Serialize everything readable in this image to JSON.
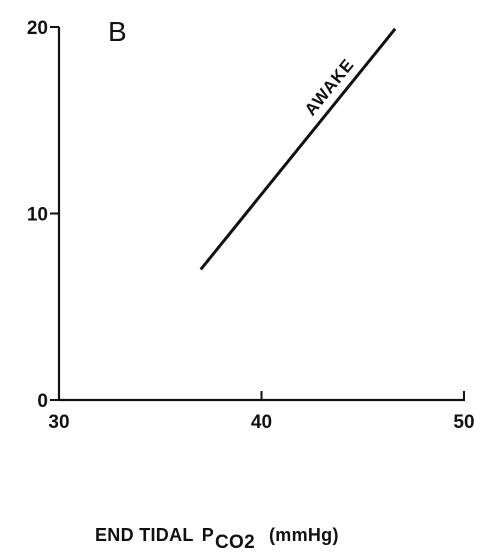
{
  "chart_data": {
    "type": "line",
    "panel_label": "B",
    "xlabel": {
      "main": "END TIDAL",
      "symbol": "P",
      "subscript": "CO2",
      "units": "(mmHg)"
    },
    "ylabel": "",
    "xlim": [
      30,
      50
    ],
    "ylim": [
      0,
      20
    ],
    "x_ticks": [
      30,
      40,
      50
    ],
    "y_ticks": [
      0,
      10,
      20
    ],
    "x_tick_labels": [
      "30",
      "40",
      "50"
    ],
    "y_tick_labels": [
      "0",
      "10",
      "20"
    ],
    "grid": false,
    "series": [
      {
        "name": "AWAKE",
        "x": [
          37,
          46.6
        ],
        "y": [
          7,
          19.9
        ]
      }
    ],
    "colors": {
      "ink": "#111111",
      "background": "#ffffff"
    }
  }
}
